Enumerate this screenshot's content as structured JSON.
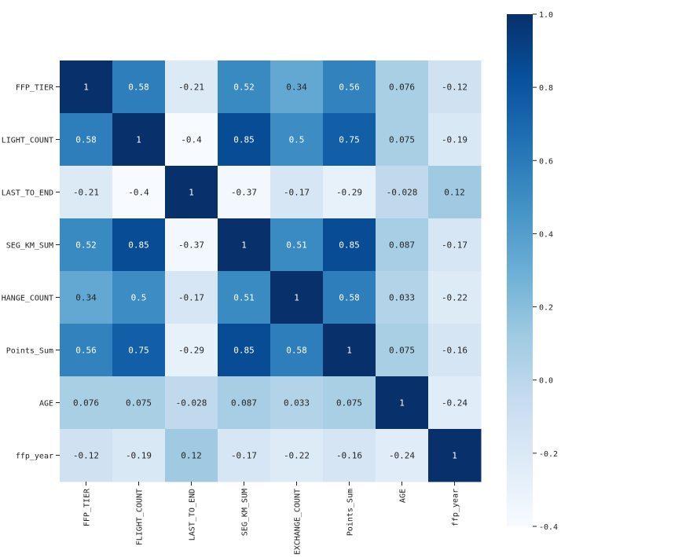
{
  "chart_data": {
    "type": "heatmap",
    "title": "",
    "xlabel": "",
    "ylabel": "",
    "columns": [
      "FFP_TIER",
      "FLIGHT_COUNT",
      "LAST_TO_END",
      "SEG_KM_SUM",
      "EXCHANGE_COUNT",
      "Points_Sum",
      "AGE",
      "ffp_year"
    ],
    "rows": [
      "FFP_TIER",
      "FLIGHT_COUNT",
      "LAST_TO_END",
      "SEG_KM_SUM",
      "EXCHANGE_COUNT",
      "Points_Sum",
      "AGE",
      "ffp_year"
    ],
    "row_labels_visible": [
      "FFP_TIER",
      "LIGHT_COUNT",
      "LAST_TO_END",
      "SEG_KM_SUM",
      "HANGE_COUNT",
      "Points_Sum",
      "AGE",
      "ffp_year"
    ],
    "values": [
      [
        1,
        0.58,
        -0.21,
        0.52,
        0.34,
        0.56,
        0.076,
        -0.12
      ],
      [
        0.58,
        1,
        -0.4,
        0.85,
        0.5,
        0.75,
        0.075,
        -0.19
      ],
      [
        -0.21,
        -0.4,
        1,
        -0.37,
        -0.17,
        -0.29,
        -0.028,
        0.12
      ],
      [
        0.52,
        0.85,
        -0.37,
        1,
        0.51,
        0.85,
        0.087,
        -0.17
      ],
      [
        0.34,
        0.5,
        -0.17,
        0.51,
        1,
        0.58,
        0.033,
        -0.22
      ],
      [
        0.56,
        0.75,
        -0.29,
        0.85,
        0.58,
        1,
        0.075,
        -0.16
      ],
      [
        0.076,
        0.075,
        -0.028,
        0.087,
        0.033,
        0.075,
        1,
        -0.24
      ],
      [
        -0.12,
        -0.19,
        0.12,
        -0.17,
        -0.22,
        -0.16,
        -0.24,
        1
      ]
    ],
    "annotations": [
      [
        "1",
        "0.58",
        "-0.21",
        "0.52",
        "0.34",
        "0.56",
        "0.076",
        "-0.12"
      ],
      [
        "0.58",
        "1",
        "-0.4",
        "0.85",
        "0.5",
        "0.75",
        "0.075",
        "-0.19"
      ],
      [
        "-0.21",
        "-0.4",
        "1",
        "-0.37",
        "-0.17",
        "-0.29",
        "-0.028",
        "0.12"
      ],
      [
        "0.52",
        "0.85",
        "-0.37",
        "1",
        "0.51",
        "0.85",
        "0.087",
        "-0.17"
      ],
      [
        "0.34",
        "0.5",
        "-0.17",
        "0.51",
        "1",
        "0.58",
        "0.033",
        "-0.22"
      ],
      [
        "0.56",
        "0.75",
        "-0.29",
        "0.85",
        "0.58",
        "1",
        "0.075",
        "-0.16"
      ],
      [
        "0.076",
        "0.075",
        "-0.028",
        "0.087",
        "0.033",
        "0.075",
        "1",
        "-0.24"
      ],
      [
        "-0.12",
        "-0.19",
        "0.12",
        "-0.17",
        "-0.22",
        "-0.16",
        "-0.24",
        "1"
      ]
    ],
    "colormap": "Blues",
    "colormap_stops": [
      "#f7fbff",
      "#deebf7",
      "#c6dbef",
      "#9ecae1",
      "#6baed6",
      "#4292c6",
      "#2171b5",
      "#08519c",
      "#08306b"
    ],
    "vmin": -0.4,
    "vmax": 1.0,
    "colorbar_ticks": [
      1.0,
      0.8,
      0.6,
      0.4,
      0.2,
      0.0,
      -0.2,
      -0.4
    ],
    "colorbar_tick_labels": [
      "1.0",
      "0.8",
      "0.6",
      "0.4",
      "0.2",
      "0.0",
      "-0.2",
      "-0.4"
    ],
    "grid": false,
    "legend": "colorbar-right"
  }
}
